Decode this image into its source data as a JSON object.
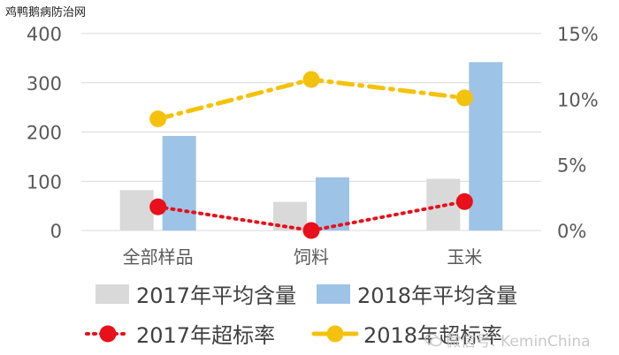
{
  "site_label": "鸡鸭鹅病防治网",
  "watermark": {
    "text": "微信号: KeminChina",
    "icon": "wechat-icon"
  },
  "colors": {
    "bar_2017": "#d9d9d9",
    "bar_2018": "#9dc3e6",
    "rate_2017": "#e8101a",
    "rate_2018": "#f4c20d",
    "grid": "#d9d9d9",
    "axis_text": "#595959"
  },
  "chart_data": {
    "type": "bar",
    "categories": [
      "全部样品",
      "饲料",
      "玉米"
    ],
    "ylim_left": [
      0,
      400
    ],
    "yticks_left": [
      "0",
      "100",
      "200",
      "300",
      "400"
    ],
    "ylim_right": [
      0,
      15
    ],
    "yticks_right": [
      "0%",
      "5%",
      "10%",
      "15%"
    ],
    "grid": true,
    "legend_position": "bottom",
    "series": [
      {
        "name": "2017年平均含量",
        "type": "bar",
        "axis": "left",
        "values": [
          82,
          58,
          105
        ]
      },
      {
        "name": "2018年平均含量",
        "type": "bar",
        "axis": "left",
        "values": [
          192,
          108,
          342
        ]
      },
      {
        "name": "2017年超标率",
        "type": "line",
        "axis": "right",
        "values": [
          1.8,
          0.0,
          2.2
        ]
      },
      {
        "name": "2018年超标率",
        "type": "line",
        "axis": "right",
        "values": [
          8.5,
          11.5,
          10.1
        ]
      }
    ]
  }
}
